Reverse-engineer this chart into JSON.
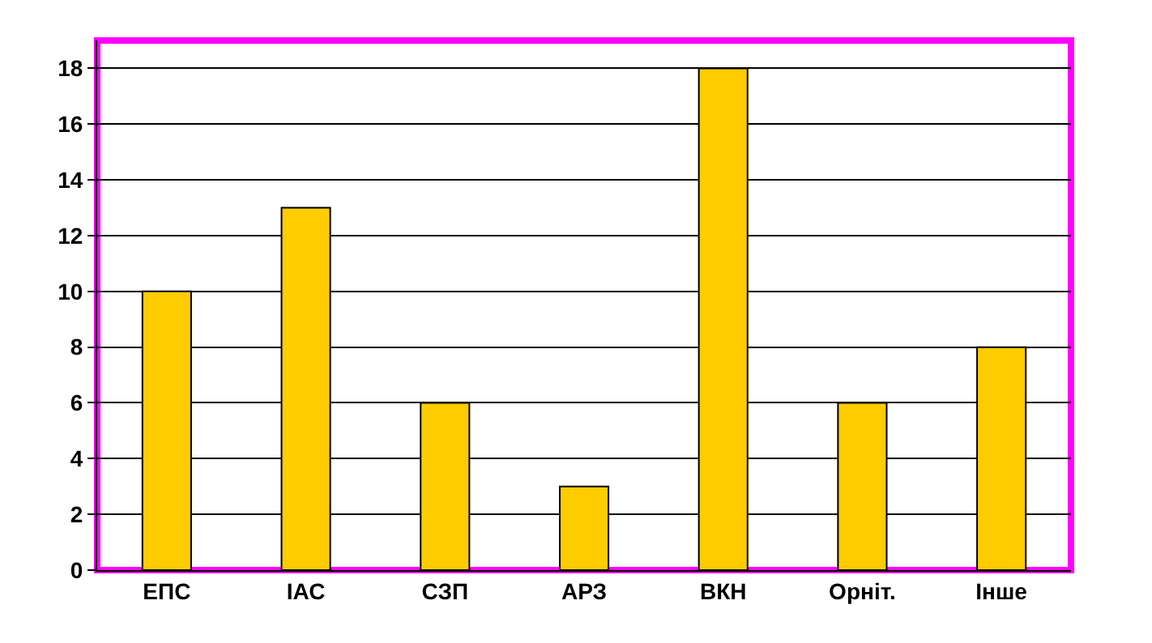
{
  "chart_data": {
    "type": "bar",
    "categories": [
      "ЕПС",
      "ІАС",
      "СЗП",
      "АРЗ",
      "ВКН",
      "Орніт.",
      "Інше"
    ],
    "values": [
      10,
      13,
      6,
      3,
      18,
      6,
      8
    ],
    "color": "#ffcc00",
    "ylim": [
      0,
      19
    ],
    "yticks": [
      0,
      2,
      4,
      6,
      8,
      10,
      12,
      14,
      16,
      18
    ],
    "grid": "y"
  }
}
